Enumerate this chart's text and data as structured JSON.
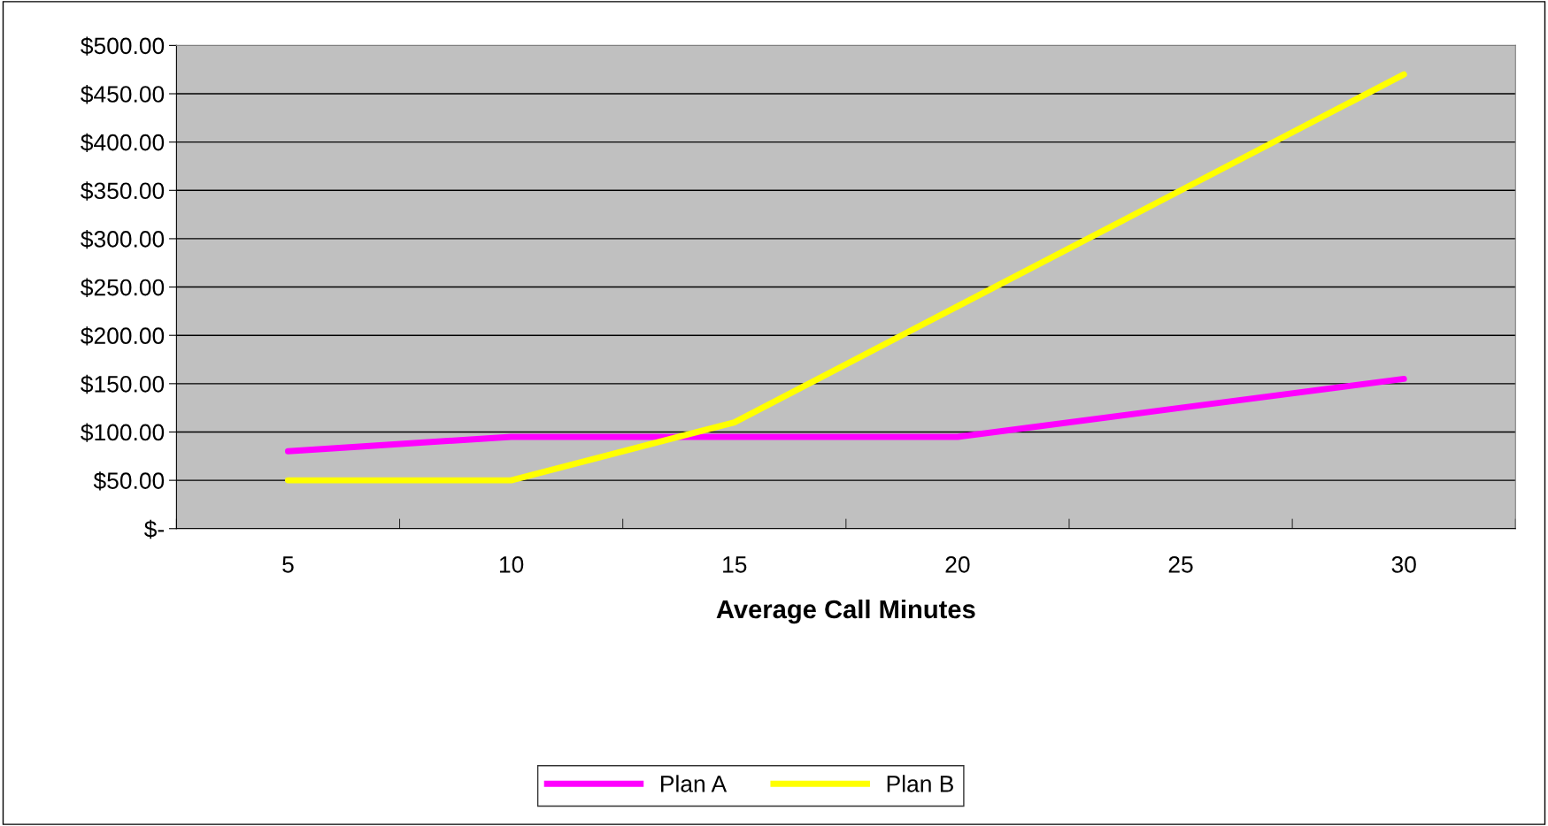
{
  "chart_data": {
    "type": "line",
    "xlabel": "Average Call Minutes",
    "categories": [
      "5",
      "10",
      "15",
      "20",
      "25",
      "30"
    ],
    "series": [
      {
        "name": "Plan A",
        "color": "#ff00ff",
        "values": [
          80,
          95,
          95,
          95,
          125,
          155
        ]
      },
      {
        "name": "Plan B",
        "color": "#ffff00",
        "values": [
          50,
          50,
          110,
          230,
          350,
          470
        ]
      }
    ],
    "ylim": [
      0,
      500
    ],
    "yticks": [
      {
        "value": 0,
        "label": "$-"
      },
      {
        "value": 50,
        "label": "$50.00"
      },
      {
        "value": 100,
        "label": "$100.00"
      },
      {
        "value": 150,
        "label": "$150.00"
      },
      {
        "value": 200,
        "label": "$200.00"
      },
      {
        "value": 250,
        "label": "$250.00"
      },
      {
        "value": 300,
        "label": "$300.00"
      },
      {
        "value": 350,
        "label": "$350.00"
      },
      {
        "value": 400,
        "label": "$400.00"
      },
      {
        "value": 450,
        "label": "$450.00"
      },
      {
        "value": 500,
        "label": "$500.00"
      }
    ],
    "grid": "y",
    "legend": "bottom",
    "marker": "none",
    "line_style": "solid"
  }
}
